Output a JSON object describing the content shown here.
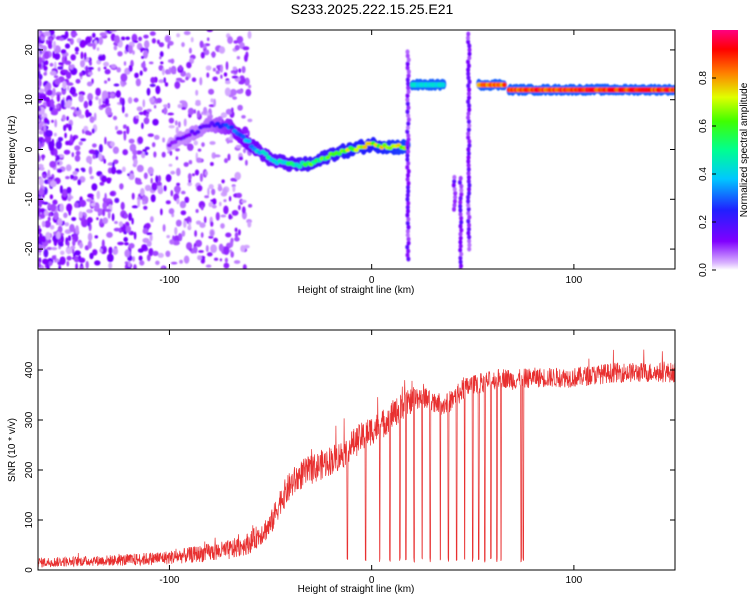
{
  "title": "S233.2025.222.15.25.E21",
  "colors": {
    "snr_line": "#e83030",
    "frame": "#000000"
  },
  "chart_data": [
    {
      "type": "heatmap",
      "xlabel": "Height of straight line (km)",
      "ylabel": "Frequency (Hz)",
      "xlim": [
        -165,
        150
      ],
      "ylim": [
        -24,
        24
      ],
      "xticks": [
        -100,
        0,
        100
      ],
      "yticks": [
        -20,
        -10,
        0,
        10,
        20
      ],
      "colorbar": {
        "label": "Normalized spectral amplitude",
        "range": [
          0,
          1
        ],
        "ticks": [
          0.0,
          0.2,
          0.4,
          0.6,
          0.8
        ],
        "colormap": "rainbow (violet-blue-cyan-green-yellow-red)"
      },
      "ridge_track": [
        {
          "x": -100,
          "y": 1,
          "amp": 0.12
        },
        {
          "x": -90,
          "y": 3,
          "amp": 0.15
        },
        {
          "x": -80,
          "y": 5,
          "amp": 0.18
        },
        {
          "x": -70,
          "y": 4.5,
          "amp": 0.3
        },
        {
          "x": -60,
          "y": 1,
          "amp": 0.4
        },
        {
          "x": -50,
          "y": -2,
          "amp": 0.45
        },
        {
          "x": -40,
          "y": -3,
          "amp": 0.5
        },
        {
          "x": -30,
          "y": -3,
          "amp": 0.6
        },
        {
          "x": -20,
          "y": -1,
          "amp": 0.6
        },
        {
          "x": -10,
          "y": 0,
          "amp": 0.7
        },
        {
          "x": 0,
          "y": 1,
          "amp": 0.7
        },
        {
          "x": 10,
          "y": 0.5,
          "amp": 0.75
        },
        {
          "x": 18,
          "y": 0.5,
          "amp": 0.8
        }
      ],
      "segments": [
        {
          "x0": 20,
          "x1": 36,
          "y": 13,
          "amp": 0.45
        },
        {
          "x0": 53,
          "x1": 66,
          "y": 13,
          "amp": 0.9
        },
        {
          "x0": 68,
          "x1": 150,
          "y": 12,
          "amp": 0.95
        }
      ],
      "vertical_streaks": [
        {
          "x": 18,
          "y0": -22,
          "y1": 20
        },
        {
          "x": 41,
          "y0": -12,
          "y1": -5
        },
        {
          "x": 44,
          "y0": -25,
          "y1": -5
        },
        {
          "x": 48,
          "y0": -20,
          "y1": 24
        }
      ]
    },
    {
      "type": "line",
      "xlabel": "Height of straight line (km)",
      "ylabel": "SNR (10 * v/v)",
      "xlim": [
        -165,
        150
      ],
      "ylim": [
        0,
        480
      ],
      "xticks": [
        -100,
        0,
        100
      ],
      "yticks": [
        0,
        100,
        200,
        300,
        400
      ],
      "series": [
        {
          "x": [
            -165,
            -140,
            -120,
            -100,
            -90,
            -80,
            -70,
            -60,
            -50,
            -45,
            -40,
            -35,
            -30,
            -25,
            -20,
            -15,
            -10,
            -5,
            0,
            5,
            10,
            15,
            20,
            25,
            30,
            35,
            40,
            45,
            50,
            55,
            60,
            65,
            70,
            80,
            90,
            100,
            110,
            120,
            130,
            140,
            150
          ],
          "values": [
            15,
            18,
            20,
            25,
            30,
            35,
            40,
            55,
            90,
            140,
            170,
            190,
            200,
            210,
            220,
            230,
            250,
            265,
            280,
            290,
            310,
            325,
            340,
            350,
            340,
            330,
            340,
            360,
            370,
            375,
            380,
            385,
            380,
            385,
            385,
            385,
            390,
            395,
            395,
            395,
            395
          ],
          "noise": [
            10,
            10,
            12,
            14,
            16,
            18,
            20,
            22,
            25,
            28,
            30,
            30,
            30,
            30,
            30,
            30,
            30,
            30,
            30,
            30,
            28,
            28,
            25,
            25,
            22,
            22,
            22,
            22,
            22,
            20,
            20,
            20,
            20,
            20,
            20,
            20,
            20,
            20,
            20,
            20,
            20
          ],
          "dropouts_x": [
            -12,
            -3,
            4,
            9,
            14,
            17,
            21,
            25,
            29,
            34,
            38,
            42,
            46,
            50,
            53,
            56,
            59,
            62,
            64,
            74,
            75
          ]
        }
      ]
    }
  ]
}
